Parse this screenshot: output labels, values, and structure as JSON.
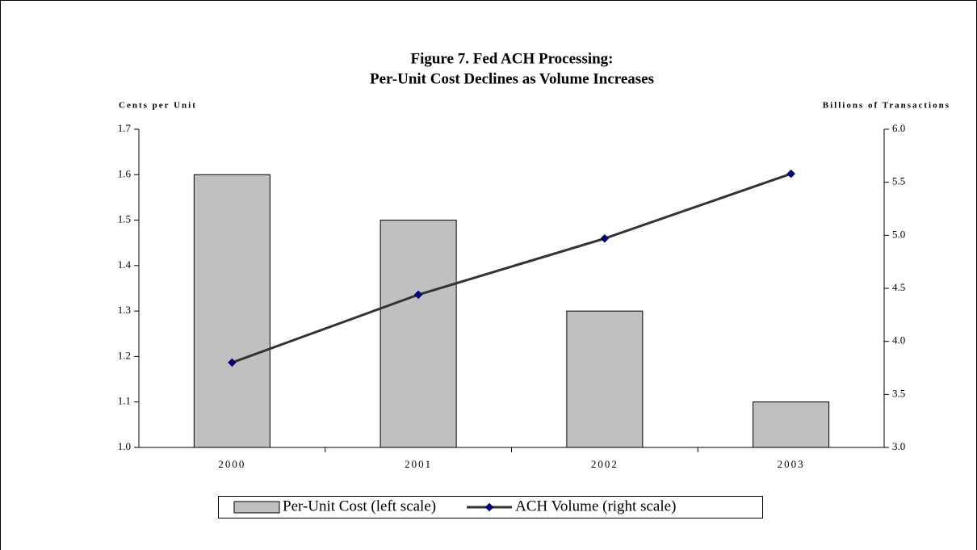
{
  "chart_data": {
    "type": "bar",
    "title": "Figure 7. Fed ACH Processing:",
    "subtitle": "Per-Unit Cost Declines as Volume Increases",
    "y_label": "Cents per Unit",
    "y2_label": "Billions of Transactions",
    "categories": [
      "2000",
      "2001",
      "2002",
      "2003"
    ],
    "series": [
      {
        "name": "Per-Unit Cost (left scale)",
        "type": "bar",
        "color": "#c0c0c0",
        "values": [
          1.6,
          1.5,
          1.3,
          1.1
        ]
      },
      {
        "name": "ACH Volume (right scale)",
        "type": "line",
        "axis": "y2",
        "color": "#333333",
        "marker_color": "#000080",
        "values": [
          3.8,
          4.44,
          4.97,
          5.58
        ]
      }
    ],
    "ylim": [
      1.0,
      1.7
    ],
    "yticks": [
      {
        "value": 1,
        "label": "1.0"
      },
      1.1,
      1.2,
      1.3,
      1.4,
      1.5,
      1.6,
      1.7
    ],
    "y2lim": [
      3.0,
      6.0
    ],
    "y2ticks": [
      {
        "value": 3,
        "label": "3.0"
      },
      3.5,
      {
        "value": 4,
        "label": "4.0"
      },
      4.5,
      {
        "value": 5,
        "label": "5.0"
      },
      5.5,
      {
        "value": 6,
        "label": "6.0"
      }
    ],
    "grid": false,
    "legend": "bottom"
  }
}
